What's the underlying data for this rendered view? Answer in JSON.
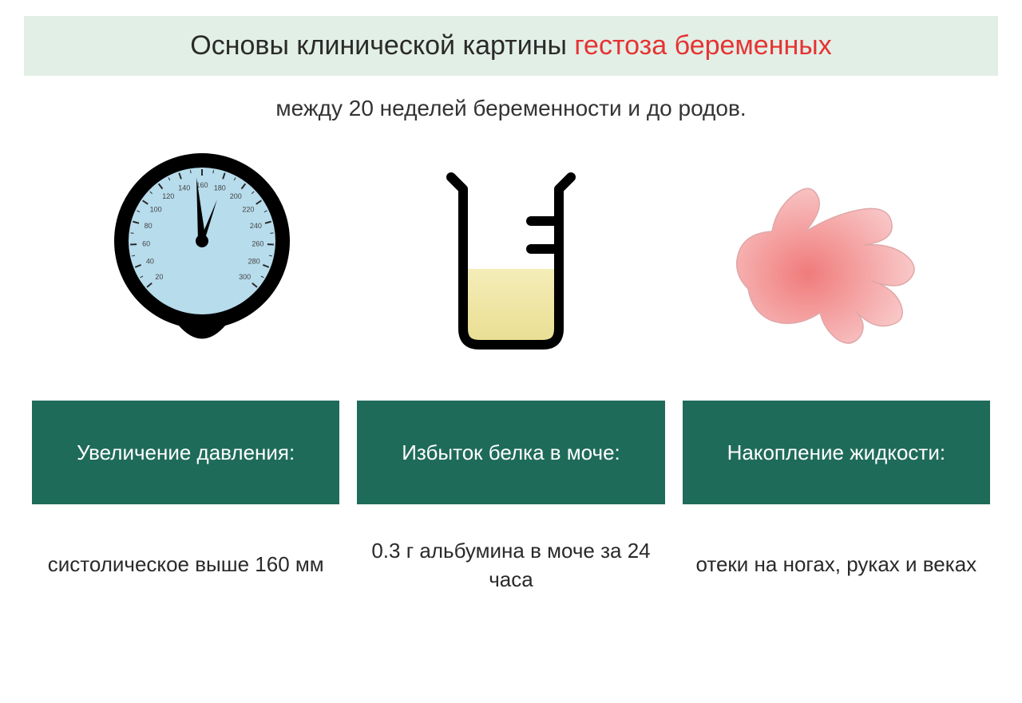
{
  "title": {
    "part1": "Основы клинической картины ",
    "part2": "гестоза беременных",
    "bg": "#e2efe6",
    "color_black": "#2a2a2a",
    "color_red": "#e63333",
    "fontsize": 34
  },
  "subtitle": {
    "text": "между 20 неделей беременности и до родов.",
    "fontsize": 28,
    "color": "#333333"
  },
  "columns": [
    {
      "green_label": "Увеличение давления:",
      "white_label": "систолическое выше 160 мм"
    },
    {
      "green_label": "Избыток белка в моче:",
      "white_label": "0.3 г альбумина в моче за 24 часа"
    },
    {
      "green_label": "Накопление жидкости:",
      "white_label": "отеки на ногах, руках и веках"
    }
  ],
  "box_style": {
    "green_bg": "#1f6b5a",
    "green_text": "#ffffff",
    "white_bg": "#ffffff",
    "white_text": "#2a2a2a",
    "fontsize": 26
  },
  "gauge": {
    "outer_color": "#000000",
    "face_color": "#b7dcec",
    "rim_color": "#000000",
    "needle_color": "#000000",
    "tick_color": "#2a2a2a",
    "labels": [
      "20",
      "40",
      "60",
      "80",
      "100",
      "120",
      "140",
      "160",
      "180",
      "200",
      "220",
      "240",
      "260",
      "280",
      "300"
    ],
    "label_fontsize": 9,
    "label_color": "#444444"
  },
  "beaker": {
    "stroke": "#000000",
    "stroke_width": 12,
    "liquid_top": "#f4edb7",
    "liquid_bottom": "#e9de93",
    "bg": "#ffffff"
  },
  "hand": {
    "fill_inner": "#f07b7b",
    "fill_outer": "#f9c8c8",
    "stroke": "#dfa8a8"
  }
}
